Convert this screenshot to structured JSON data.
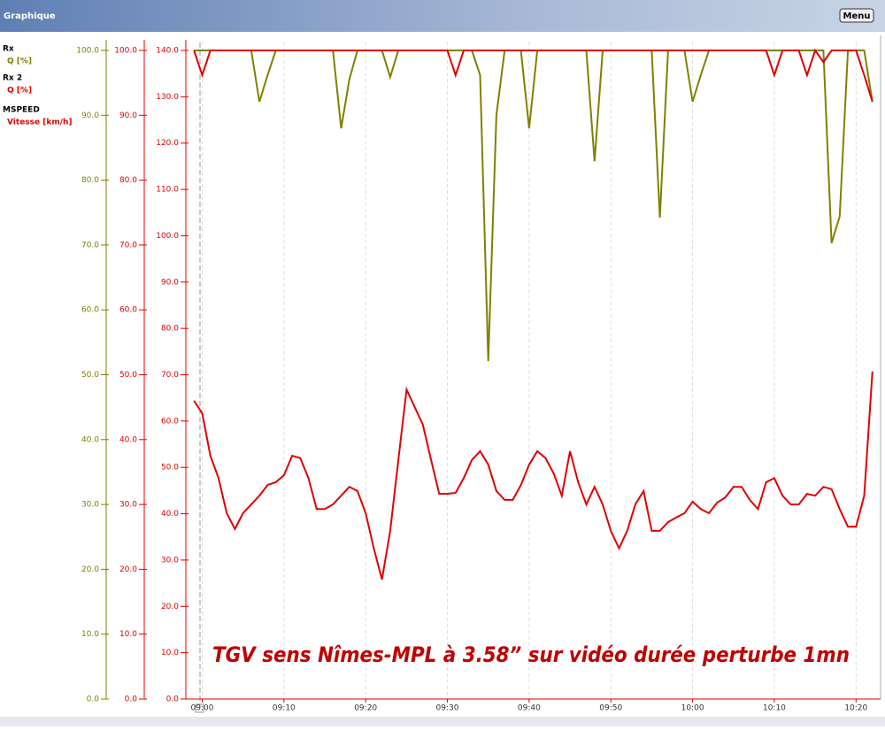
{
  "header": {
    "title": "Graphique",
    "menu": "Menu"
  },
  "chart_data": {
    "type": "line",
    "annotation": "TGV sens Nîmes-MPL à 3.58” sur vidéo durée perturbe 1mn",
    "x": [
      "08:59",
      "09:00",
      "09:01",
      "09:02",
      "09:03",
      "09:04",
      "09:05",
      "09:06",
      "09:07",
      "09:08",
      "09:09",
      "09:10",
      "09:11",
      "09:12",
      "09:13",
      "09:14",
      "09:15",
      "09:16",
      "09:17",
      "09:18",
      "09:19",
      "09:20",
      "09:21",
      "09:22",
      "09:23",
      "09:24",
      "09:25",
      "09:26",
      "09:27",
      "09:28",
      "09:29",
      "09:30",
      "09:31",
      "09:32",
      "09:33",
      "09:34",
      "09:35",
      "09:36",
      "09:37",
      "09:38",
      "09:39",
      "09:40",
      "09:41",
      "09:42",
      "09:43",
      "09:44",
      "09:45",
      "09:46",
      "09:47",
      "09:48",
      "09:49",
      "09:50",
      "09:51",
      "09:52",
      "09:53",
      "09:54",
      "09:55",
      "09:56",
      "09:57",
      "09:58",
      "09:59",
      "10:00",
      "10:01",
      "10:02",
      "10:03",
      "10:04",
      "10:05",
      "10:06",
      "10:07",
      "10:08",
      "10:09",
      "10:10",
      "10:11",
      "10:12",
      "10:13",
      "10:14",
      "10:15",
      "10:16",
      "10:17",
      "10:18",
      "10:19",
      "10:20",
      "10:21",
      "10:22"
    ],
    "xlim": [
      "08:58",
      "10:23"
    ],
    "xticks": [
      "09:00",
      "09:10",
      "09:20",
      "09:30",
      "09:40",
      "09:50",
      "10:00",
      "10:10",
      "10:20"
    ],
    "series": [
      {
        "group": "Rx",
        "name": "Q [%]",
        "color": "#808000",
        "axis": "y",
        "values": [
          100,
          100,
          100,
          100,
          100,
          100,
          100,
          100,
          92.1,
          96.2,
          100,
          100,
          100,
          100,
          100,
          100,
          100,
          100,
          88,
          95.5,
          100,
          100,
          100,
          100,
          95.9,
          100,
          100,
          100,
          100,
          100,
          100,
          100,
          100,
          100,
          100,
          96.2,
          52.1,
          90,
          100,
          100,
          100,
          88,
          100,
          100,
          100,
          100,
          100,
          100,
          100,
          82.9,
          100,
          100,
          100,
          100,
          100,
          100,
          100,
          74.2,
          100,
          100,
          100,
          92.1,
          96.2,
          100,
          100,
          100,
          100,
          100,
          100,
          100,
          100,
          100,
          100,
          100,
          100,
          100,
          100,
          100,
          70.3,
          74.4,
          100,
          100,
          100,
          92.1
        ]
      },
      {
        "group": "Rx 2",
        "name": "Q [%]",
        "color": "#e00000",
        "axis": "y2",
        "values": [
          100,
          96.2,
          100,
          100,
          100,
          100,
          100,
          100,
          100,
          100,
          100,
          100,
          100,
          100,
          100,
          100,
          100,
          100,
          100,
          100,
          100,
          100,
          100,
          100,
          100,
          100,
          100,
          100,
          100,
          100,
          100,
          100,
          96.2,
          100,
          100,
          100,
          100,
          100,
          100,
          100,
          100,
          100,
          100,
          100,
          100,
          100,
          100,
          100,
          100,
          100,
          100,
          100,
          100,
          100,
          100,
          100,
          100,
          100,
          100,
          100,
          100,
          100,
          100,
          100,
          100,
          100,
          100,
          100,
          100,
          100,
          100,
          96.2,
          100,
          100,
          100,
          96.2,
          100,
          98.2,
          100,
          100,
          100,
          100,
          96.2,
          92.1
        ]
      },
      {
        "group": "MSPEED",
        "name": "Vitesse [km/h]",
        "color": "#e00000",
        "axis": "y3",
        "values": [
          64.4,
          61.7,
          52.5,
          47.7,
          40.1,
          36.7,
          40.1,
          42,
          43.9,
          46.2,
          46.8,
          48.3,
          52.5,
          52,
          47.7,
          41,
          41,
          42,
          43.9,
          45.8,
          44.9,
          40.1,
          32.5,
          25.8,
          36.3,
          51.6,
          66.8,
          63,
          59.2,
          51.6,
          44.3,
          44.3,
          44.5,
          47.7,
          51.6,
          53.5,
          50.6,
          44.9,
          43,
          43,
          46.2,
          50.6,
          53.5,
          52,
          48.7,
          43.9,
          53.5,
          46.8,
          42,
          45.8,
          42,
          36.3,
          32.5,
          36.3,
          42,
          44.9,
          36.3,
          36.3,
          38.2,
          39.2,
          40.1,
          42.6,
          41,
          40.1,
          42.4,
          43.5,
          45.8,
          45.8,
          43,
          41,
          46.8,
          47.7,
          43.9,
          42,
          42,
          44.3,
          43.9,
          45.8,
          45.3,
          41,
          37.2,
          37.2,
          43.9,
          70.7
        ]
      }
    ],
    "ylim": [
      0,
      100
    ],
    "yticks": [
      {
        "value": 0,
        "label": "0.0"
      },
      {
        "value": 10,
        "label": "10.0"
      },
      {
        "value": 20,
        "label": "20.0"
      },
      {
        "value": 30,
        "label": "30.0"
      },
      {
        "value": 40,
        "label": "40.0"
      },
      {
        "value": 50,
        "label": "50.0"
      },
      {
        "value": 60,
        "label": "60.0"
      },
      {
        "value": 70,
        "label": "70.0"
      },
      {
        "value": 80,
        "label": "80.0"
      },
      {
        "value": 90,
        "label": "90.0"
      },
      {
        "value": 100,
        "label": "100.0"
      }
    ],
    "y2lim": [
      0,
      100
    ],
    "y2ticks": [
      {
        "value": 0,
        "label": "0.0"
      },
      {
        "value": 10,
        "label": "10.0"
      },
      {
        "value": 20,
        "label": "20.0"
      },
      {
        "value": 30,
        "label": "30.0"
      },
      {
        "value": 40,
        "label": "40.0"
      },
      {
        "value": 50,
        "label": "50.0"
      },
      {
        "value": 60,
        "label": "60.0"
      },
      {
        "value": 70,
        "label": "70.0"
      },
      {
        "value": 80,
        "label": "80.0"
      },
      {
        "value": 90,
        "label": "90.0"
      },
      {
        "value": 100,
        "label": "100.0"
      }
    ],
    "y3lim": [
      0,
      140
    ],
    "y3ticks": [
      {
        "value": 0,
        "label": "0.0"
      },
      {
        "value": 10,
        "label": "10.0"
      },
      {
        "value": 20,
        "label": "20.0"
      },
      {
        "value": 30,
        "label": "30.0"
      },
      {
        "value": 40,
        "label": "40.0"
      },
      {
        "value": 50,
        "label": "50.0"
      },
      {
        "value": 60,
        "label": "60.0"
      },
      {
        "value": 70,
        "label": "70.0"
      },
      {
        "value": 80,
        "label": "80.0"
      },
      {
        "value": 90,
        "label": "90.0"
      },
      {
        "value": 100,
        "label": "100.0"
      },
      {
        "value": 110,
        "label": "110.0"
      },
      {
        "value": 120,
        "label": "120.0"
      },
      {
        "value": 130,
        "label": "130.0"
      },
      {
        "value": 140,
        "label": "140.0"
      }
    ],
    "grid": true
  }
}
